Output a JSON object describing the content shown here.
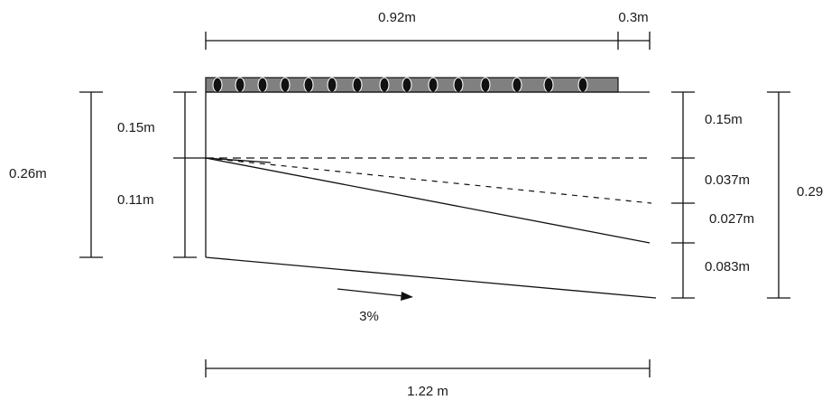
{
  "labels": {
    "top_length": "0.92m",
    "top_overhang": "0.3m",
    "left_total": "0.26m",
    "left_upper": "0.15m",
    "left_lower": "0.11m",
    "right_upper": "0.15m",
    "right_mid1": "0.037m",
    "right_mid2": "0.027m",
    "right_lower": "0.083m",
    "right_total": "0.29",
    "slope": "3%",
    "bottom_length": "1.22 m"
  },
  "colors": {
    "line": "#111111",
    "bar_fill": "#808080",
    "hole_fill": "#111111"
  },
  "pipes": {
    "count": 16
  }
}
